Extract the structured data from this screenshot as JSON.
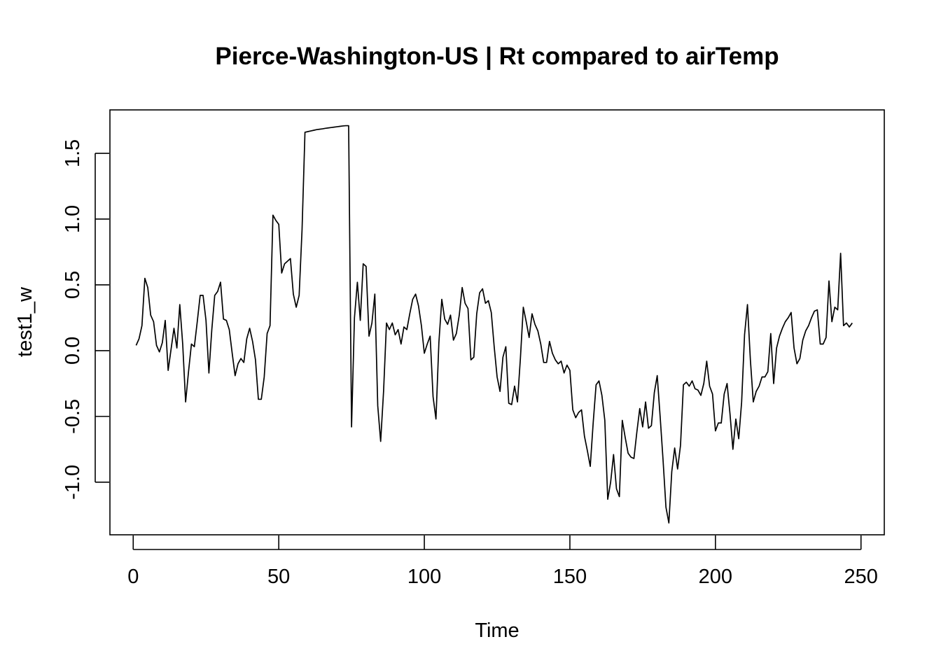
{
  "chart_data": {
    "type": "line",
    "title": "Pierce-Washington-US | Rt compared to airTemp",
    "xlabel": "Time",
    "ylabel": "test1_w",
    "xlim": [
      -8,
      258
    ],
    "ylim": [
      -1.4,
      1.83
    ],
    "x_ticks": [
      0,
      50,
      100,
      150,
      200,
      250
    ],
    "x_tick_labels": [
      "0",
      "50",
      "100",
      "150",
      "200",
      "250"
    ],
    "y_ticks": [
      -1.0,
      -0.5,
      0.0,
      0.5,
      1.0,
      1.5
    ],
    "y_tick_labels": [
      "-1.0",
      "-0.5",
      "0.0",
      "0.5",
      "1.0",
      "1.5"
    ],
    "grid": false,
    "line_color": "#000000",
    "x_start": 1,
    "series": [
      {
        "values": [
          0.04,
          0.09,
          0.19,
          0.55,
          0.48,
          0.27,
          0.22,
          0.04,
          -0.01,
          0.06,
          0.23,
          -0.15,
          0.01,
          0.17,
          0.02,
          0.35,
          0.05,
          -0.39,
          -0.16,
          0.05,
          0.03,
          0.22,
          0.42,
          0.42,
          0.23,
          -0.17,
          0.16,
          0.42,
          0.45,
          0.52,
          0.24,
          0.23,
          0.16,
          -0.02,
          -0.19,
          -0.1,
          -0.06,
          -0.09,
          0.09,
          0.17,
          0.07,
          -0.07,
          -0.37,
          -0.37,
          -0.2,
          0.13,
          0.19,
          1.03,
          0.99,
          0.96,
          0.59,
          0.66,
          0.68,
          0.7,
          0.43,
          0.33,
          0.42,
          0.92,
          1.66,
          1.665,
          1.67,
          1.675,
          1.68,
          1.683,
          1.686,
          1.69,
          1.693,
          1.696,
          1.699,
          1.702,
          1.705,
          1.708,
          1.71,
          1.71,
          -0.58,
          0.25,
          0.52,
          0.23,
          0.66,
          0.64,
          0.11,
          0.21,
          0.43,
          -0.42,
          -0.69,
          -0.31,
          0.21,
          0.16,
          0.21,
          0.12,
          0.16,
          0.05,
          0.18,
          0.16,
          0.28,
          0.39,
          0.43,
          0.34,
          0.19,
          -0.02,
          0.05,
          0.11,
          -0.35,
          -0.52,
          0.06,
          0.39,
          0.24,
          0.2,
          0.27,
          0.08,
          0.13,
          0.27,
          0.48,
          0.36,
          0.32,
          -0.07,
          -0.05,
          0.28,
          0.44,
          0.47,
          0.36,
          0.38,
          0.29,
          0.03,
          -0.2,
          -0.31,
          -0.05,
          0.03,
          -0.4,
          -0.41,
          -0.27,
          -0.39,
          -0.06,
          0.33,
          0.22,
          0.1,
          0.28,
          0.2,
          0.15,
          0.05,
          -0.09,
          -0.09,
          0.07,
          -0.02,
          -0.07,
          -0.1,
          -0.08,
          -0.17,
          -0.11,
          -0.15,
          -0.45,
          -0.51,
          -0.47,
          -0.45,
          -0.65,
          -0.76,
          -0.88,
          -0.55,
          -0.26,
          -0.23,
          -0.34,
          -0.53,
          -1.13,
          -1.0,
          -0.79,
          -1.05,
          -1.11,
          -0.53,
          -0.66,
          -0.78,
          -0.81,
          -0.82,
          -0.62,
          -0.44,
          -0.58,
          -0.39,
          -0.59,
          -0.57,
          -0.32,
          -0.19,
          -0.5,
          -0.83,
          -1.19,
          -1.31,
          -0.92,
          -0.74,
          -0.9,
          -0.72,
          -0.26,
          -0.24,
          -0.27,
          -0.23,
          -0.29,
          -0.3,
          -0.34,
          -0.25,
          -0.08,
          -0.27,
          -0.33,
          -0.61,
          -0.55,
          -0.55,
          -0.33,
          -0.25,
          -0.48,
          -0.75,
          -0.52,
          -0.67,
          -0.39,
          0.12,
          0.35,
          -0.07,
          -0.39,
          -0.31,
          -0.27,
          -0.2,
          -0.2,
          -0.16,
          0.13,
          -0.25,
          0.02,
          0.11,
          0.17,
          0.22,
          0.25,
          0.29,
          0.02,
          -0.1,
          -0.06,
          0.08,
          0.15,
          0.19,
          0.25,
          0.3,
          0.31,
          0.05,
          0.05,
          0.1,
          0.53,
          0.22,
          0.33,
          0.31,
          0.74,
          0.19,
          0.21,
          0.18,
          0.21
        ]
      }
    ]
  }
}
